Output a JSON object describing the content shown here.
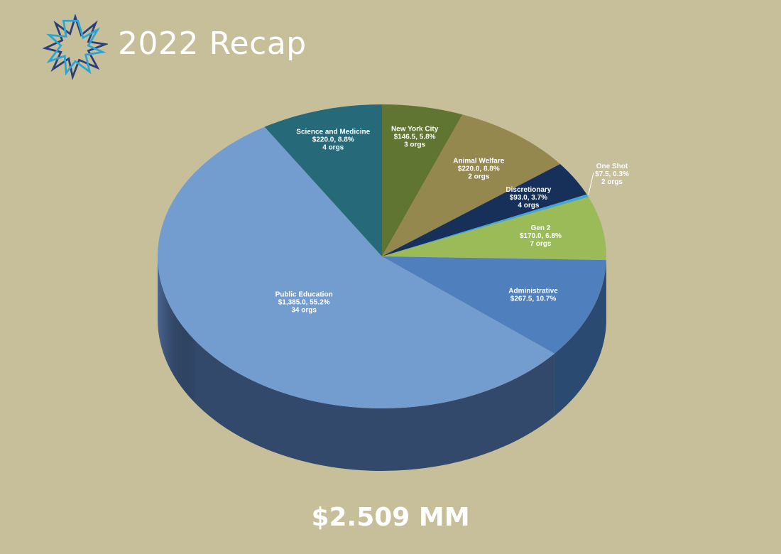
{
  "header": {
    "title": "2022 Recap"
  },
  "total": {
    "label": "$2.509 MM"
  },
  "chart_data": {
    "type": "pie",
    "title": "",
    "style": "3d",
    "categories": [
      "New York City",
      "Animal Welfare",
      "Discretionary",
      "One Shot",
      "Gen 2",
      "Administrative",
      "Public Education",
      "Science and Medicine"
    ],
    "values": [
      146.5,
      220.0,
      93.0,
      7.5,
      170.0,
      267.5,
      1385.0,
      220.0
    ],
    "percents": [
      5.8,
      8.8,
      3.7,
      0.3,
      6.8,
      10.7,
      55.2,
      8.8
    ],
    "org_counts": [
      3,
      2,
      4,
      2,
      7,
      null,
      34,
      4
    ],
    "labels": [
      [
        "New York City",
        "$146.5, 5.8%",
        "3 orgs"
      ],
      [
        "Animal Welfare",
        "$220.0, 8.8%",
        "2 orgs"
      ],
      [
        "Discretionary",
        "$93.0, 3.7%",
        "4 orgs"
      ],
      [
        "One Shot",
        "$7.5, 0.3%",
        "2 orgs"
      ],
      [
        "Gen 2",
        "$170.0, 6.8%",
        "7 orgs"
      ],
      [
        "Administrative",
        "$267.5, 10.7%"
      ],
      [
        "Public Education",
        "$1,385.0, 55.2%",
        "34 orgs"
      ],
      [
        "Science and Medicine",
        "$220.0, 8.8%",
        "4 orgs"
      ]
    ],
    "colors": [
      "#617533",
      "#94884f",
      "#16305a",
      "#45a6d7",
      "#9bbb59",
      "#4f80bd",
      "#739ccf",
      "#266a7a"
    ],
    "side_colors": [
      "#45542a",
      "#6c6239",
      "#0e2040",
      "#2f7aa0",
      "#6d863a",
      "#2b4a72",
      "#33496b",
      "#1a4a55"
    ],
    "legend": "none"
  }
}
